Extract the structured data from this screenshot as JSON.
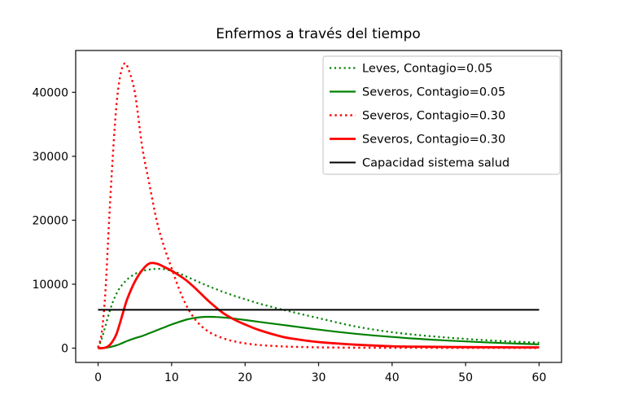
{
  "figure": {
    "background": "#ffffff"
  },
  "chart_data": {
    "type": "line",
    "title": "Enfermos a través del tiempo",
    "xlabel": "",
    "ylabel": "",
    "xlim": [
      -3.05,
      63.05
    ],
    "ylim": [
      -2230,
      46540
    ],
    "xticks": [
      0,
      10,
      20,
      30,
      40,
      50,
      60
    ],
    "yticks": [
      0,
      10000,
      20000,
      30000,
      40000
    ],
    "grid": false,
    "legend": {
      "position": "upper right",
      "border_color": "#cccccc",
      "background": "#ffffff"
    },
    "x": [
      0,
      0.5,
      1,
      1.5,
      2,
      2.5,
      3,
      3.5,
      4,
      5,
      6,
      7,
      8,
      9,
      10,
      11,
      12,
      13,
      14,
      15,
      16,
      17,
      18,
      19,
      20,
      22,
      25,
      27,
      30,
      35,
      40,
      45,
      50,
      55,
      60
    ],
    "series": [
      {
        "name": "Leves, Contagio=0.05",
        "color": "#008000",
        "linestyle": "dotted",
        "linewidth": 2.2,
        "values": [
          0,
          1500,
          3500,
          5500,
          7200,
          8500,
          9500,
          10200,
          10800,
          11600,
          12050,
          12300,
          12400,
          12350,
          12100,
          11700,
          11200,
          10700,
          10200,
          9700,
          9250,
          8800,
          8400,
          8000,
          7650,
          6950,
          6050,
          5500,
          4700,
          3400,
          2500,
          1900,
          1450,
          1100,
          850
        ]
      },
      {
        "name": "Severos, Contagio=0.05",
        "color": "#008000",
        "linestyle": "solid",
        "linewidth": 2.2,
        "values": [
          0,
          20,
          60,
          150,
          280,
          450,
          650,
          900,
          1150,
          1550,
          1900,
          2350,
          2800,
          3250,
          3700,
          4100,
          4450,
          4700,
          4850,
          4900,
          4880,
          4800,
          4700,
          4550,
          4400,
          4100,
          3650,
          3350,
          2900,
          2250,
          1750,
          1350,
          1050,
          800,
          600
        ]
      },
      {
        "name": "Severos, Contagio=0.30",
        "color": "#ff0000",
        "linestyle": "dotted",
        "linewidth": 2.4,
        "values": [
          100,
          2500,
          9000,
          20000,
          30000,
          38000,
          42500,
          44400,
          44000,
          40000,
          31500,
          25500,
          19800,
          15800,
          12500,
          9300,
          6700,
          4800,
          3500,
          2600,
          2000,
          1550,
          1200,
          950,
          750,
          480,
          280,
          200,
          130,
          80,
          60,
          50,
          40,
          35,
          30
        ]
      },
      {
        "name": "Severos, Contagio=0.30",
        "color": "#ff0000",
        "linestyle": "solid",
        "linewidth": 2.8,
        "values": [
          0,
          0,
          100,
          400,
          1100,
          2200,
          4000,
          6000,
          7800,
          10400,
          12200,
          13250,
          13200,
          12700,
          12100,
          11400,
          10600,
          9600,
          8500,
          7400,
          6400,
          5500,
          4800,
          4200,
          3700,
          2800,
          1800,
          1400,
          950,
          550,
          300,
          220,
          170,
          140,
          120
        ]
      },
      {
        "name": "Capacidad sistema salud",
        "color": "#000000",
        "linestyle": "solid",
        "linewidth": 2.0,
        "values": [
          6000,
          6000,
          6000,
          6000,
          6000,
          6000,
          6000,
          6000,
          6000,
          6000,
          6000,
          6000,
          6000,
          6000,
          6000,
          6000,
          6000,
          6000,
          6000,
          6000,
          6000,
          6000,
          6000,
          6000,
          6000,
          6000,
          6000,
          6000,
          6000,
          6000,
          6000,
          6000,
          6000,
          6000,
          6000
        ]
      }
    ]
  }
}
